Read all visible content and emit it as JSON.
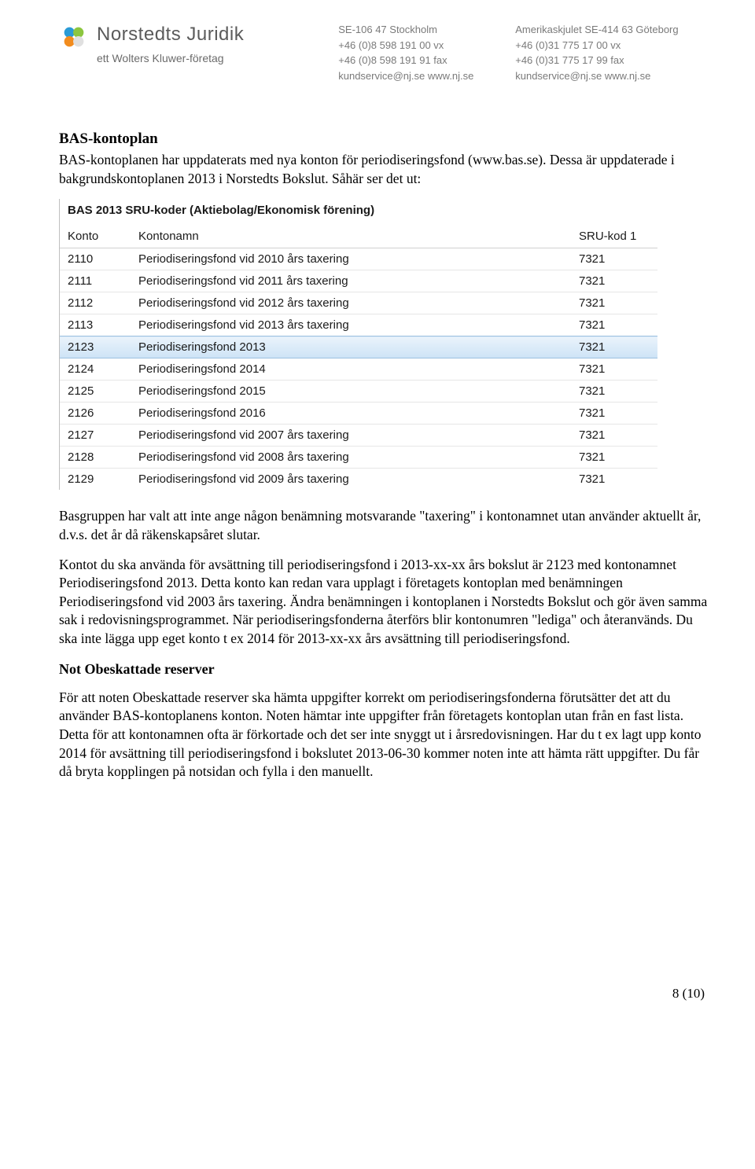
{
  "letterhead": {
    "brand_name": "Norstedts Juridik",
    "brand_sub": "ett Wolters Kluwer-företag",
    "col1": {
      "l1": "SE-106 47 Stockholm",
      "l2": "+46 (0)8 598 191 00 vx",
      "l3": "+46 (0)8 598 191 91 fax",
      "l4": "kundservice@nj.se  www.nj.se"
    },
    "col2": {
      "l1": "Amerikaskjulet  SE-414 63 Göteborg",
      "l2": "+46 (0)31 775 17 00 vx",
      "l3": "+46 (0)31 775 17 99 fax",
      "l4": "kundservice@nj.se  www.nj.se"
    }
  },
  "heading1": "BAS-kontoplan",
  "para1": "BAS-kontoplanen har uppdaterats med nya konton för periodiseringsfond (www.bas.se). Dessa är uppdaterade i bakgrundskontoplanen 2013 i Norstedts Bokslut. Såhär ser det ut:",
  "table": {
    "title": "BAS 2013 SRU-koder (Aktiebolag/Ekonomisk förening)",
    "headers": {
      "konto": "Konto",
      "namn": "Kontonamn",
      "kod": "SRU-kod 1"
    },
    "rows": [
      {
        "konto": "2110",
        "namn": "Periodiseringsfond vid 2010 års taxering",
        "kod": "7321",
        "highlight": false
      },
      {
        "konto": "2111",
        "namn": "Periodiseringsfond vid 2011 års taxering",
        "kod": "7321",
        "highlight": false
      },
      {
        "konto": "2112",
        "namn": "Periodiseringsfond vid 2012 års taxering",
        "kod": "7321",
        "highlight": false
      },
      {
        "konto": "2113",
        "namn": "Periodiseringsfond vid 2013 års taxering",
        "kod": "7321",
        "highlight": false
      },
      {
        "konto": "2123",
        "namn": "Periodiseringsfond 2013",
        "kod": "7321",
        "highlight": true
      },
      {
        "konto": "2124",
        "namn": "Periodiseringsfond 2014",
        "kod": "7321",
        "highlight": false
      },
      {
        "konto": "2125",
        "namn": "Periodiseringsfond 2015",
        "kod": "7321",
        "highlight": false
      },
      {
        "konto": "2126",
        "namn": "Periodiseringsfond 2016",
        "kod": "7321",
        "highlight": false
      },
      {
        "konto": "2127",
        "namn": "Periodiseringsfond vid 2007 års taxering",
        "kod": "7321",
        "highlight": false
      },
      {
        "konto": "2128",
        "namn": "Periodiseringsfond vid 2008 års taxering",
        "kod": "7321",
        "highlight": false
      },
      {
        "konto": "2129",
        "namn": "Periodiseringsfond vid 2009 års taxering",
        "kod": "7321",
        "highlight": false
      }
    ]
  },
  "para2": "Basgruppen har valt att inte ange någon benämning motsvarande \"taxering\" i kontonamnet utan använder aktuellt år, d.v.s. det år då räkenskapsåret slutar.",
  "para3": "Kontot du ska använda för avsättning till periodiseringsfond i 2013-xx-xx års bokslut är 2123 med kontonamnet Periodiseringsfond 2013. Detta konto kan redan vara upplagt i företagets kontoplan med benämningen Periodiseringsfond vid 2003 års taxering. Ändra benämningen i kontoplanen i Norstedts Bokslut och gör även samma sak i redovisningsprogrammet. När periodiseringsfonderna återförs blir kontonumren \"lediga\" och återanvänds. Du ska inte lägga upp eget konto t ex 2014 för 2013-xx-xx års avsättning till periodiseringsfond.",
  "heading2": "Not Obeskattade reserver",
  "para4": "För att noten Obeskattade reserver ska hämta uppgifter korrekt om periodiseringsfonderna förutsätter det att du använder BAS-kontoplanens konton. Noten hämtar inte uppgifter från företagets kontoplan utan från en fast lista. Detta för att kontonamnen ofta är förkortade och det ser inte snyggt ut i årsredovisningen. Har du t ex lagt upp konto 2014 för avsättning till periodiseringsfond i bokslutet 2013-06-30 kommer noten inte att hämta rätt uppgifter. Du får då bryta kopplingen på notsidan och fylla i den manuellt.",
  "footer": "8 (10)"
}
